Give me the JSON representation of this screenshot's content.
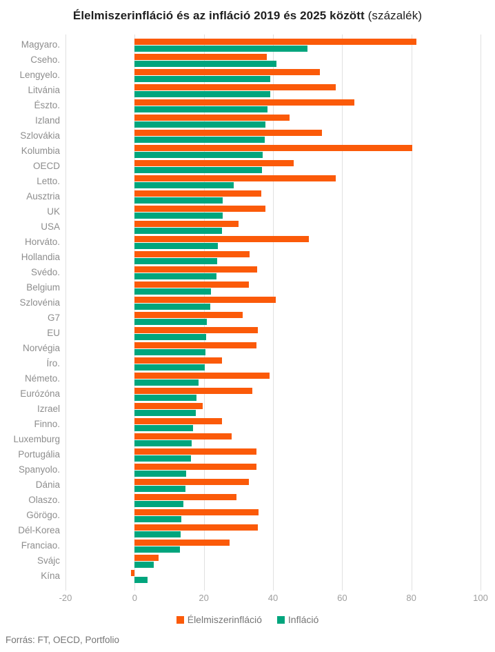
{
  "title": {
    "main": "Élelmiszerinfláció és az infláció 2019 és 2025 között",
    "suffix": " (százalék)"
  },
  "footer": {
    "source": "Forrás: FT, OECD, Portfolio"
  },
  "colors": {
    "food": "#fb5a09",
    "inflation": "#00a57d",
    "grid": "#e0e0e0",
    "axis_text": "#9e9e9e",
    "category_text": "#8d8d8d",
    "legend_text": "#757575"
  },
  "chart_data": {
    "type": "bar",
    "orientation": "horizontal",
    "title": "Élelmiszerinfláció és az infláció 2019 és 2025 között (százalék)",
    "categories": [
      "Magyaro.",
      "Cseho.",
      "Lengyelo.",
      "Litvánia",
      "Észto.",
      "Izland",
      "Szlovákia",
      "Kolumbia",
      "OECD",
      "Letto.",
      "Ausztria",
      "UK",
      "USA",
      "Horváto.",
      "Hollandia",
      "Svédo.",
      "Belgium",
      "Szlovénia",
      "G7",
      "EU",
      "Norvégia",
      "Íro.",
      "Németo.",
      "Eurózóna",
      "Izrael",
      "Finno.",
      "Luxemburg",
      "Portugália",
      "Spanyolo.",
      "Dánia",
      "Olaszo.",
      "Görögo.",
      "Dél-Korea",
      "Franciao.",
      "Svájc",
      "Kína"
    ],
    "series": [
      {
        "name": "Élelmiszerinfláció",
        "color": "#fb5a09",
        "values": [
          81.5,
          38.3,
          53.5,
          58.2,
          63.5,
          44.8,
          54.2,
          80.3,
          46.0,
          58.2,
          36.7,
          37.8,
          30.1,
          50.3,
          33.3,
          35.5,
          33.1,
          40.8,
          31.3,
          35.6,
          35.3,
          25.3,
          39.0,
          34.0,
          19.7,
          25.3,
          28.1,
          35.3,
          35.3,
          33.1,
          29.4,
          35.9,
          35.6,
          27.4,
          7.0,
          -1.0
        ]
      },
      {
        "name": "Infláció",
        "color": "#00a57d",
        "values": [
          50.0,
          41.0,
          39.3,
          39.2,
          38.5,
          37.9,
          37.7,
          37.0,
          36.8,
          28.7,
          25.5,
          25.4,
          25.2,
          24.0,
          23.8,
          23.7,
          22.1,
          21.9,
          20.9,
          20.7,
          20.5,
          20.3,
          18.5,
          17.8,
          17.7,
          16.9,
          16.5,
          16.3,
          14.8,
          14.7,
          14.1,
          13.5,
          13.3,
          13.1,
          5.5,
          3.8
        ]
      }
    ],
    "xlim": [
      -20,
      100
    ],
    "xticks": [
      -20,
      0,
      20,
      40,
      60,
      80,
      100
    ],
    "grid": "vertical",
    "legend_position": "bottom",
    "source": "Forrás: FT, OECD, Portfolio"
  }
}
